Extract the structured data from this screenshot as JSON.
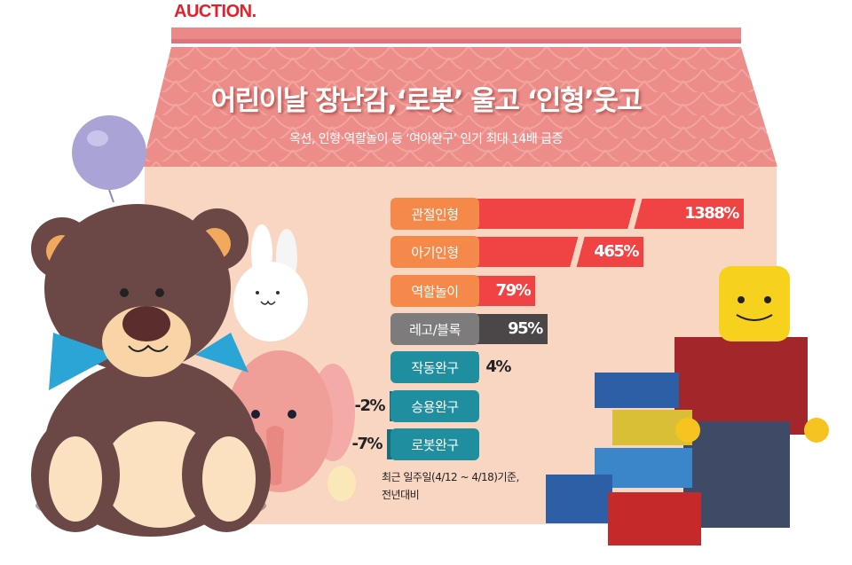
{
  "brand": "AUCTION.",
  "title": "어린이날 장난감,‘로봇’ 울고 ‘인형’웃고",
  "subtitle": "옥션, 인형·역할놀이 등 ‘여아완구’ 인기 최대 14배 급증",
  "note_line1": "최근 일주일(4/12 ~ 4/18)기준,",
  "note_line2": "전년대비",
  "colors": {
    "orange": "#f5894a",
    "red": "#f04343",
    "gray": "#7d7b7b",
    "dark": "#4b4647",
    "teal": "#1f8e9f",
    "teal_dark": "#176e7a"
  },
  "chart_data": {
    "type": "bar",
    "orientation": "horizontal",
    "axis_break": true,
    "categories": [
      "관절인형",
      "아기인형",
      "역할놀이",
      "레고/블록",
      "작동완구",
      "승용완구",
      "로봇완구"
    ],
    "values": [
      1388,
      465,
      79,
      95,
      4,
      -2,
      -7
    ],
    "value_labels": [
      "1388%",
      "465%",
      "79%",
      "95%",
      "4%",
      "-2%",
      "-7%"
    ],
    "category_colors": [
      "orange",
      "orange",
      "orange",
      "gray",
      "teal",
      "teal",
      "teal"
    ],
    "bar_colors": [
      "red",
      "red",
      "red",
      "dark",
      "teal_dark",
      "teal_dark",
      "teal_dark"
    ]
  }
}
